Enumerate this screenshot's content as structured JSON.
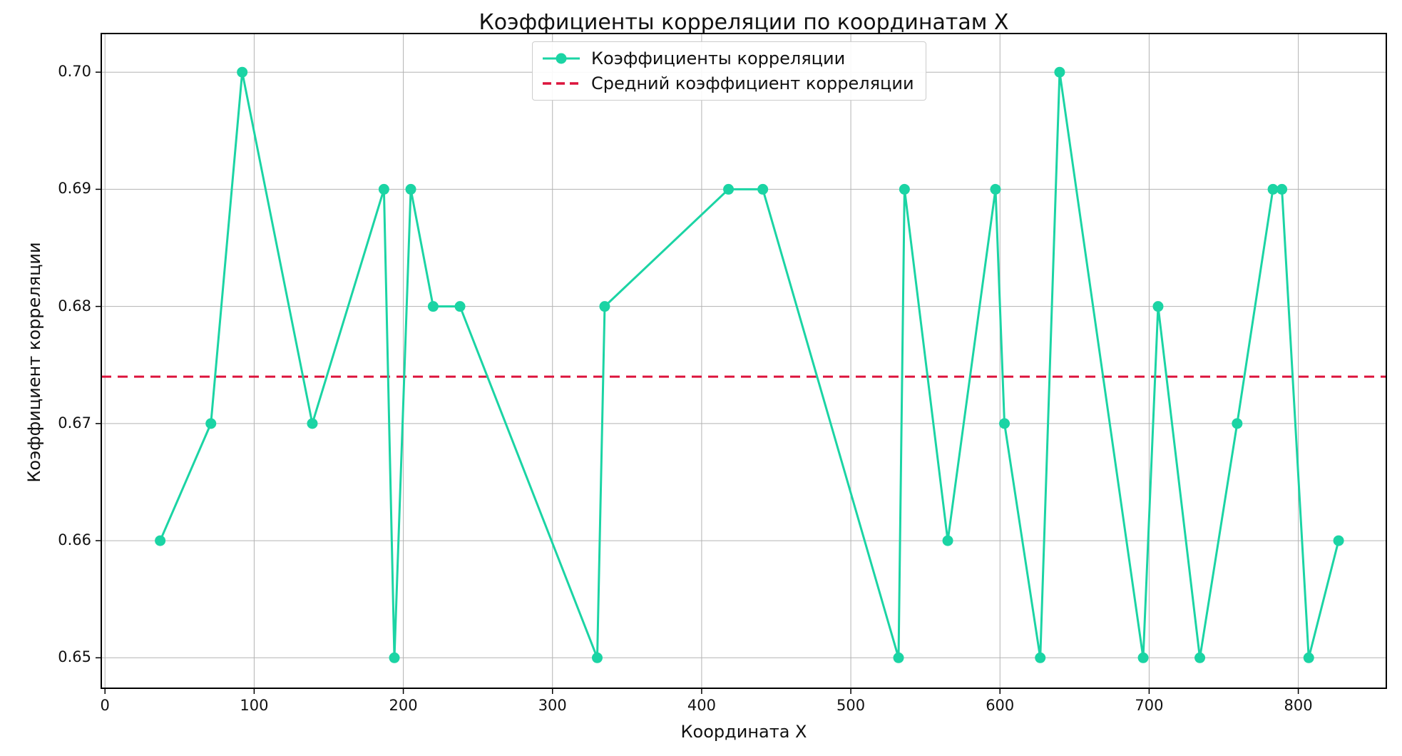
{
  "chart_data": {
    "type": "line",
    "title": "Коэффициенты корреляции по координатам X",
    "xlabel": "Координата X",
    "ylabel": "Коэффициент корреляции",
    "grid": true,
    "legend_position": "upper center",
    "x_ticks": [
      0,
      100,
      200,
      300,
      400,
      500,
      600,
      700,
      800
    ],
    "x_tick_labels": [
      "0",
      "100",
      "200",
      "300",
      "400",
      "500",
      "600",
      "700",
      "800"
    ],
    "y_ticks": [
      0.65,
      0.66,
      0.67,
      0.68,
      0.69,
      0.7
    ],
    "y_tick_labels": [
      "0.65",
      "0.66",
      "0.67",
      "0.68",
      "0.69",
      "0.70"
    ],
    "xlim": [
      -2.5,
      859
    ],
    "ylim": [
      0.6474,
      0.7033
    ],
    "series": [
      {
        "name": "Коэффициенты корреляции",
        "color": "#1bd4a4",
        "marker": "circle",
        "line_style": "solid",
        "points": [
          [
            37,
            0.66
          ],
          [
            71,
            0.67
          ],
          [
            92,
            0.7
          ],
          [
            139,
            0.67
          ],
          [
            187,
            0.69
          ],
          [
            194,
            0.65
          ],
          [
            205,
            0.69
          ],
          [
            220,
            0.68
          ],
          [
            238,
            0.68
          ],
          [
            330,
            0.65
          ],
          [
            335,
            0.68
          ],
          [
            418,
            0.69
          ],
          [
            441,
            0.69
          ],
          [
            532,
            0.65
          ],
          [
            536,
            0.69
          ],
          [
            565,
            0.66
          ],
          [
            597,
            0.69
          ],
          [
            603,
            0.67
          ],
          [
            627,
            0.65
          ],
          [
            640,
            0.7
          ],
          [
            696,
            0.65
          ],
          [
            706,
            0.68
          ],
          [
            734,
            0.65
          ],
          [
            759,
            0.67
          ],
          [
            783,
            0.69
          ],
          [
            789,
            0.69
          ],
          [
            807,
            0.65
          ],
          [
            827,
            0.66
          ]
        ]
      }
    ],
    "mean_line": {
      "name": "Средний коэффициент корреляции",
      "value": 0.674,
      "color": "#DC143C",
      "style": "dashed"
    }
  }
}
